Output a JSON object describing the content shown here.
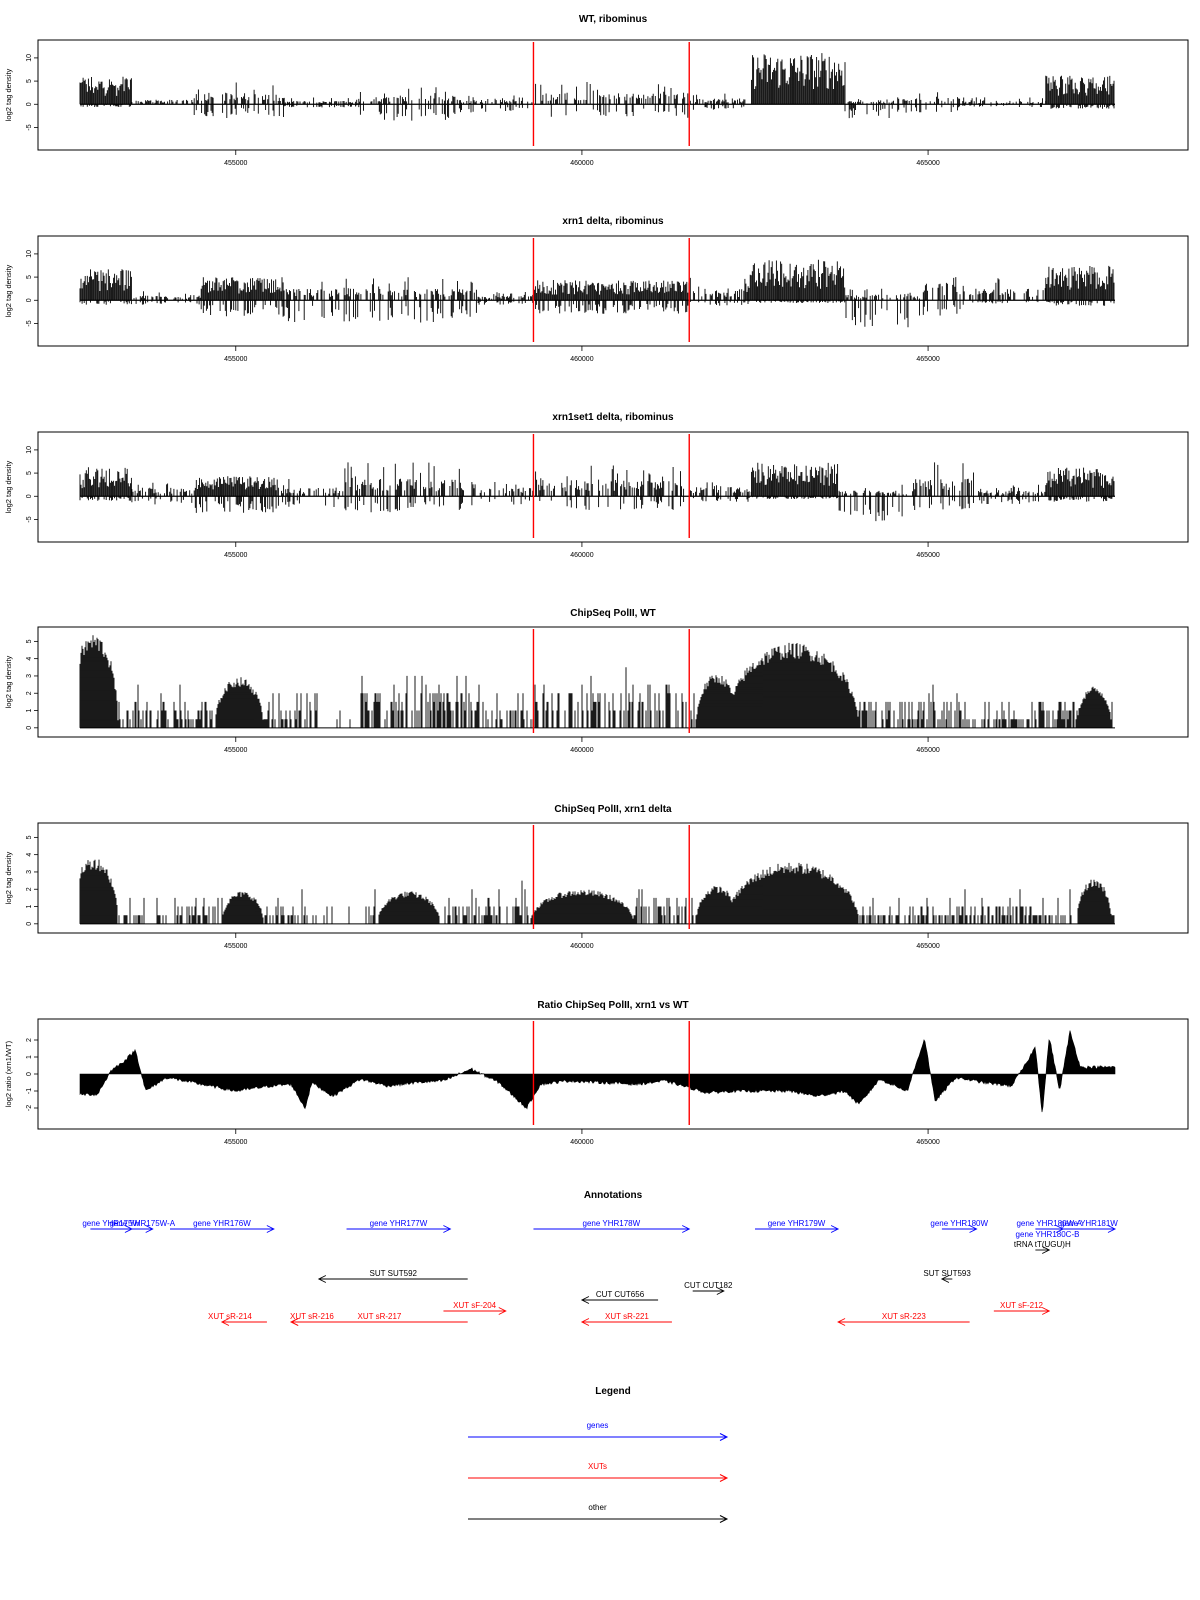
{
  "x_axis": {
    "range": [
      452750,
      467700
    ],
    "ticks": [
      455000,
      460000,
      465000
    ]
  },
  "markers": {
    "color": "#ff0000",
    "positions": [
      459300,
      461550
    ]
  },
  "chart_data": [
    {
      "type": "bar",
      "title": "WT, ribominus",
      "ylabel": "log2 tag density",
      "ylim": [
        -9,
        13
      ],
      "yticks": [
        -5,
        0,
        5,
        10
      ],
      "signal": "stranded",
      "regions": [
        {
          "from": 452750,
          "to": 453500,
          "pos": 5,
          "neg": 0.5
        },
        {
          "from": 453500,
          "to": 454400,
          "pos": 0.8,
          "neg": 0.3
        },
        {
          "from": 454400,
          "to": 455700,
          "pos": 2,
          "neg": 2.5
        },
        {
          "from": 455700,
          "to": 456800,
          "pos": 0.6,
          "neg": 0.6
        },
        {
          "from": 456800,
          "to": 458200,
          "pos": 1.5,
          "neg": 3
        },
        {
          "from": 458200,
          "to": 459300,
          "pos": 0.8,
          "neg": 1.5
        },
        {
          "from": 459300,
          "to": 461550,
          "pos": 2,
          "neg": 2.5
        },
        {
          "from": 461550,
          "to": 462450,
          "pos": 1,
          "neg": 1
        },
        {
          "from": 462450,
          "to": 463800,
          "pos": 9,
          "neg": 0.3
        },
        {
          "from": 463800,
          "to": 464500,
          "pos": 0.5,
          "neg": 2.5
        },
        {
          "from": 464500,
          "to": 465500,
          "pos": 1.2,
          "neg": 1.5
        },
        {
          "from": 465500,
          "to": 466700,
          "pos": 0.6,
          "neg": 0.5
        },
        {
          "from": 466700,
          "to": 467700,
          "pos": 5,
          "neg": 0.8
        }
      ]
    },
    {
      "type": "bar",
      "title": "xrn1 delta, ribominus",
      "ylabel": "log2 tag density",
      "ylim": [
        -9,
        13
      ],
      "yticks": [
        -5,
        0,
        5,
        10
      ],
      "signal": "stranded",
      "regions": [
        {
          "from": 452750,
          "to": 453500,
          "pos": 5.5,
          "neg": 0.8
        },
        {
          "from": 453500,
          "to": 454500,
          "pos": 0.8,
          "neg": 0.8
        },
        {
          "from": 454500,
          "to": 455700,
          "pos": 4,
          "neg": 3
        },
        {
          "from": 455700,
          "to": 458500,
          "pos": 2,
          "neg": 4
        },
        {
          "from": 458500,
          "to": 459300,
          "pos": 0.8,
          "neg": 0.8
        },
        {
          "from": 459300,
          "to": 461550,
          "pos": 3.5,
          "neg": 2.5
        },
        {
          "from": 461550,
          "to": 462400,
          "pos": 2,
          "neg": 1
        },
        {
          "from": 462400,
          "to": 463800,
          "pos": 7,
          "neg": 0.5
        },
        {
          "from": 463800,
          "to": 464900,
          "pos": 1,
          "neg": 5
        },
        {
          "from": 464900,
          "to": 465600,
          "pos": 3,
          "neg": 3
        },
        {
          "from": 465600,
          "to": 466700,
          "pos": 2,
          "neg": 0.6
        },
        {
          "from": 466700,
          "to": 467700,
          "pos": 6,
          "neg": 1
        }
      ]
    },
    {
      "type": "bar",
      "title": "xrn1set1 delta, ribominus",
      "ylabel": "log2 tag density",
      "ylim": [
        -9,
        13
      ],
      "yticks": [
        -5,
        0,
        5,
        10
      ],
      "signal": "stranded",
      "regions": [
        {
          "from": 452750,
          "to": 453500,
          "pos": 5,
          "neg": 0.8
        },
        {
          "from": 453500,
          "to": 454400,
          "pos": 1.5,
          "neg": 1.5
        },
        {
          "from": 454400,
          "to": 455600,
          "pos": 3.5,
          "neg": 3
        },
        {
          "from": 455600,
          "to": 456500,
          "pos": 1.5,
          "neg": 2
        },
        {
          "from": 456500,
          "to": 458500,
          "pos": 3,
          "neg": 3
        },
        {
          "from": 458500,
          "to": 459300,
          "pos": 1.5,
          "neg": 1.5
        },
        {
          "from": 459300,
          "to": 461550,
          "pos": 3,
          "neg": 2.5
        },
        {
          "from": 461550,
          "to": 462450,
          "pos": 1.8,
          "neg": 1
        },
        {
          "from": 462450,
          "to": 463700,
          "pos": 6,
          "neg": 0.5
        },
        {
          "from": 463700,
          "to": 464700,
          "pos": 1,
          "neg": 4.5
        },
        {
          "from": 464700,
          "to": 465700,
          "pos": 3,
          "neg": 2.5
        },
        {
          "from": 465700,
          "to": 466700,
          "pos": 1,
          "neg": 1.5
        },
        {
          "from": 466700,
          "to": 467700,
          "pos": 5,
          "neg": 1
        }
      ]
    },
    {
      "type": "bar",
      "title": "ChipSeq PolII, WT",
      "ylabel": "log2 tag density",
      "ylim": [
        -0.3,
        5.6
      ],
      "yticks": [
        0,
        1,
        2,
        3,
        4,
        5
      ],
      "signal": "positive",
      "peaks": [
        {
          "center": 452950,
          "height": 5.2,
          "width": 700
        },
        {
          "center": 455050,
          "height": 2.8,
          "width": 700
        },
        {
          "center": 461950,
          "height": 3.0,
          "width": 600
        },
        {
          "center": 463050,
          "height": 4.7,
          "width": 1900
        },
        {
          "center": 467400,
          "height": 2.3,
          "width": 500
        }
      ],
      "background": [
        {
          "from": 452750,
          "to": 454200,
          "level": 1.2
        },
        {
          "from": 454200,
          "to": 456200,
          "level": 1.0
        },
        {
          "from": 456200,
          "to": 456800,
          "level": 0.2
        },
        {
          "from": 456800,
          "to": 458600,
          "level": 1.8
        },
        {
          "from": 458600,
          "to": 459300,
          "level": 1.0
        },
        {
          "from": 459300,
          "to": 461550,
          "level": 1.9
        },
        {
          "from": 461550,
          "to": 462000,
          "level": 0.8
        },
        {
          "from": 462000,
          "to": 463800,
          "level": 1.5
        },
        {
          "from": 463800,
          "to": 465500,
          "level": 1.3
        },
        {
          "from": 465500,
          "to": 466500,
          "level": 0.6
        },
        {
          "from": 466500,
          "to": 467700,
          "level": 1.2
        }
      ]
    },
    {
      "type": "bar",
      "title": "ChipSeq PolII, xrn1 delta",
      "ylabel": "log2 tag density",
      "ylim": [
        -0.3,
        5.6
      ],
      "yticks": [
        0,
        1,
        2,
        3,
        4,
        5
      ],
      "signal": "positive",
      "peaks": [
        {
          "center": 452950,
          "height": 3.7,
          "width": 700
        },
        {
          "center": 455100,
          "height": 1.8,
          "width": 600
        },
        {
          "center": 457500,
          "height": 1.8,
          "width": 900
        },
        {
          "center": 460000,
          "height": 1.9,
          "width": 1500
        },
        {
          "center": 461950,
          "height": 2.1,
          "width": 600
        },
        {
          "center": 463050,
          "height": 3.4,
          "width": 1900
        },
        {
          "center": 467400,
          "height": 2.5,
          "width": 500
        }
      ],
      "background": [
        {
          "from": 452750,
          "to": 454200,
          "level": 0.4
        },
        {
          "from": 454200,
          "to": 456200,
          "level": 0.8
        },
        {
          "from": 456200,
          "to": 456800,
          "level": 0.2
        },
        {
          "from": 456800,
          "to": 459300,
          "level": 1.0
        },
        {
          "from": 459300,
          "to": 461550,
          "level": 1.2
        },
        {
          "from": 461550,
          "to": 462100,
          "level": 0.5
        },
        {
          "from": 462100,
          "to": 463800,
          "level": 1.0
        },
        {
          "from": 463800,
          "to": 465300,
          "level": 0.7
        },
        {
          "from": 465300,
          "to": 466500,
          "level": 0.9
        },
        {
          "from": 466500,
          "to": 467700,
          "level": 0.6
        }
      ]
    },
    {
      "type": "area",
      "title": "Ratio ChipSeq PolII, xrn1 vs WT",
      "ylabel": "log2 ratio (xrn1/WT)",
      "ylim": [
        -3,
        3
      ],
      "yticks": [
        -2,
        -1,
        0,
        1,
        2
      ],
      "signal": "ratio",
      "knots": [
        [
          452750,
          -1.2
        ],
        [
          453000,
          -1.2
        ],
        [
          453200,
          0.2
        ],
        [
          453400,
          0.8
        ],
        [
          453550,
          1.4
        ],
        [
          453700,
          -1.0
        ],
        [
          454000,
          -0.2
        ],
        [
          454500,
          -0.6
        ],
        [
          455000,
          -1.0
        ],
        [
          455500,
          -0.7
        ],
        [
          455800,
          -0.6
        ],
        [
          456000,
          -2.0
        ],
        [
          456100,
          -0.5
        ],
        [
          456400,
          -1.3
        ],
        [
          456800,
          -0.3
        ],
        [
          457200,
          -0.7
        ],
        [
          457600,
          -0.5
        ],
        [
          458000,
          -0.4
        ],
        [
          458400,
          0.3
        ],
        [
          458800,
          -0.5
        ],
        [
          459200,
          -2.0
        ],
        [
          459400,
          -0.6
        ],
        [
          459800,
          -0.4
        ],
        [
          460300,
          -0.5
        ],
        [
          460800,
          -0.6
        ],
        [
          461200,
          -0.4
        ],
        [
          461550,
          -0.8
        ],
        [
          461800,
          -1.1
        ],
        [
          462200,
          -1.0
        ],
        [
          462600,
          -1.0
        ],
        [
          463000,
          -1.0
        ],
        [
          463400,
          -1.3
        ],
        [
          463800,
          -1.0
        ],
        [
          464000,
          -1.8
        ],
        [
          464300,
          -0.3
        ],
        [
          464700,
          -1.0
        ],
        [
          464950,
          2.1
        ],
        [
          465100,
          -1.6
        ],
        [
          465400,
          -0.2
        ],
        [
          465800,
          -0.5
        ],
        [
          466200,
          -0.7
        ],
        [
          466400,
          0.5
        ],
        [
          466550,
          1.6
        ],
        [
          466650,
          -2.4
        ],
        [
          466750,
          2.2
        ],
        [
          466900,
          -1.0
        ],
        [
          467050,
          2.5
        ],
        [
          467200,
          0.4
        ],
        [
          467700,
          0.4
        ]
      ]
    }
  ],
  "annotations": {
    "title": "Annotations",
    "colors": {
      "gene": "#0000ff",
      "xut": "#ff0000",
      "other": "#000000"
    },
    "items": [
      {
        "kind": "gene",
        "label": "gene YHR175W",
        "from": 452900,
        "to": 453500,
        "lane": 0
      },
      {
        "kind": "gene",
        "label": "gene YHR175W-A",
        "from": 453500,
        "to": 453800,
        "lane": 0
      },
      {
        "kind": "gene",
        "label": "gene YHR176W",
        "from": 454050,
        "to": 455550,
        "lane": 0
      },
      {
        "kind": "gene",
        "label": "gene YHR177W",
        "from": 456600,
        "to": 458100,
        "lane": 0
      },
      {
        "kind": "gene",
        "label": "gene YHR178W",
        "from": 459300,
        "to": 461550,
        "lane": 0
      },
      {
        "kind": "gene",
        "label": "gene YHR179W",
        "from": 462500,
        "to": 463700,
        "lane": 0
      },
      {
        "kind": "gene",
        "label": "gene YHR180W",
        "from": 465200,
        "to": 465700,
        "lane": 0
      },
      {
        "kind": "gene",
        "label": "gene YHR180W-A",
        "from": 466550,
        "to": 466950,
        "lane": 0
      },
      {
        "kind": "gene",
        "label": "gene YHR181W",
        "from": 466950,
        "to": 467700,
        "lane": 0
      },
      {
        "kind": "gene",
        "label": "gene YHR180C-B",
        "from": 466500,
        "to": 466950,
        "lane": 1,
        "noline": true
      },
      {
        "kind": "other",
        "label": "tRNA tT(UGU)H",
        "from": 466550,
        "to": 466750,
        "lane": 2
      },
      {
        "kind": "other",
        "label": "SUT SUT592",
        "from": 456200,
        "to": 458350,
        "lane": 4,
        "dir": "left"
      },
      {
        "kind": "other",
        "label": "SUT SUT593",
        "from": 465200,
        "to": 465350,
        "lane": 4,
        "dir": "left"
      },
      {
        "kind": "other",
        "label": "CUT CUT182",
        "from": 461600,
        "to": 462050,
        "lane": 5
      },
      {
        "kind": "other",
        "label": "CUT CUT656",
        "from": 460000,
        "to": 461100,
        "lane": 6,
        "dir": "left"
      },
      {
        "kind": "xut",
        "label": "XUT sF-204",
        "from": 458000,
        "to": 458900,
        "lane": 7
      },
      {
        "kind": "xut",
        "label": "XUT sF-212",
        "from": 465950,
        "to": 466750,
        "lane": 7
      },
      {
        "kind": "xut",
        "label": "XUT sR-214",
        "from": 454800,
        "to": 455450,
        "lane": 8,
        "dir": "left"
      },
      {
        "kind": "xut",
        "label": "XUT sR-216",
        "from": 455800,
        "to": 456400,
        "lane": 8,
        "dir": "left"
      },
      {
        "kind": "xut",
        "label": "XUT sR-217",
        "from": 455800,
        "to": 458350,
        "lane": 8,
        "dir": "left",
        "noText": false
      },
      {
        "kind": "xut",
        "label": "XUT sR-221",
        "from": 460000,
        "to": 461300,
        "lane": 8,
        "dir": "left"
      },
      {
        "kind": "xut",
        "label": "XUT sR-223",
        "from": 463700,
        "to": 465600,
        "lane": 8,
        "dir": "left"
      }
    ]
  },
  "legend": {
    "title": "Legend",
    "items": [
      {
        "label": "genes",
        "color": "#0000ff"
      },
      {
        "label": "XUTs",
        "color": "#ff0000"
      },
      {
        "label": "other",
        "color": "#000000"
      }
    ]
  }
}
